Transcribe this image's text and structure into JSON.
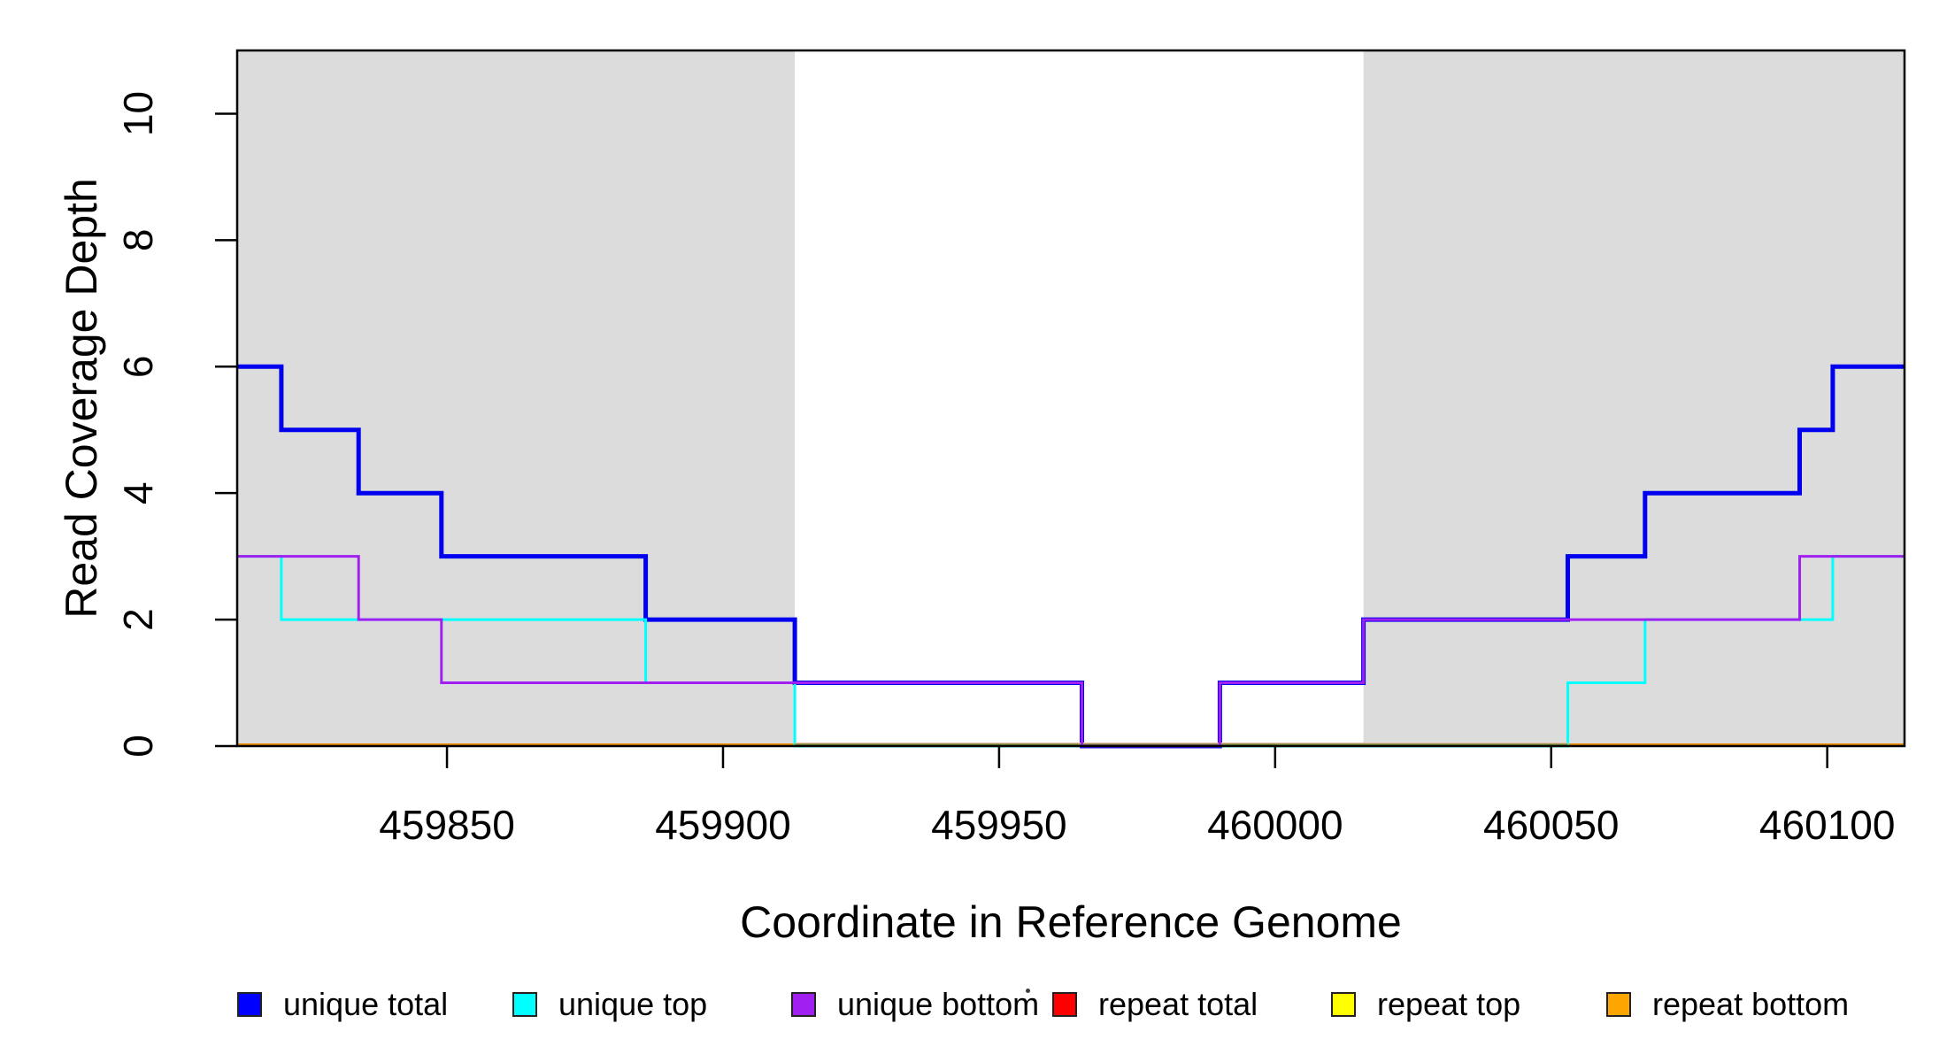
{
  "y_axis": {
    "title": "Read Coverage Depth",
    "ticks": [
      0,
      2,
      4,
      6,
      8,
      10
    ],
    "range": [
      0,
      11
    ]
  },
  "x_axis": {
    "title": "Coordinate in Reference Genome",
    "ticks": [
      459850,
      459900,
      459950,
      460000,
      460050,
      460100
    ]
  },
  "chart_data": {
    "type": "line",
    "subtype": "step",
    "x_range": [
      459812,
      460114
    ],
    "y_range": [
      0,
      11
    ],
    "grid": false,
    "step_breakpoints": [
      459812,
      459820,
      459834,
      459849,
      459886,
      459913,
      459965,
      459990,
      460016,
      460053,
      460067,
      460095,
      460101,
      460114
    ],
    "series": [
      {
        "name": "unique total",
        "color": "#0000EE",
        "values": [
          6,
          5,
          4,
          3,
          2,
          1,
          0,
          1,
          2,
          3,
          4,
          5,
          6
        ]
      },
      {
        "name": "unique top",
        "color": "#00FFFF",
        "values": [
          3,
          2,
          2,
          2,
          1,
          0,
          0,
          0,
          0,
          1,
          2,
          2,
          3
        ]
      },
      {
        "name": "unique bottom",
        "color": "#A020F0",
        "values": [
          3,
          3,
          2,
          1,
          1,
          1,
          0,
          1,
          2,
          2,
          2,
          3,
          3
        ]
      },
      {
        "name": "repeat total",
        "color": "#FF0000",
        "values": [
          0,
          0,
          0,
          0,
          0,
          0,
          0,
          0,
          0,
          0,
          0,
          0,
          0
        ]
      },
      {
        "name": "repeat top",
        "color": "#FFFF00",
        "values": [
          0,
          0,
          0,
          0,
          0,
          0,
          0,
          0,
          0,
          0,
          0,
          0,
          0
        ]
      },
      {
        "name": "repeat bottom",
        "color": "#FFA500",
        "values": [
          0,
          0,
          0,
          0,
          0,
          0,
          0,
          0,
          0,
          0,
          0,
          0,
          0
        ]
      }
    ],
    "shaded_regions": [
      {
        "from": 459812,
        "to": 459913
      },
      {
        "from": 460016,
        "to": 460114
      }
    ],
    "shade_color": "#DCDCDC",
    "legend_position": "bottom"
  },
  "legend": {
    "items": [
      {
        "label": "unique total",
        "color": "#0000FF"
      },
      {
        "label": "unique top",
        "color": "#00FFFF"
      },
      {
        "label": "unique bottom",
        "color": "#A020F0"
      },
      {
        "label": "repeat total",
        "color": "#FF0000"
      },
      {
        "label": "repeat top",
        "color": "#FFFF00"
      },
      {
        "label": "repeat bottom",
        "color": "#FFA500"
      }
    ]
  }
}
